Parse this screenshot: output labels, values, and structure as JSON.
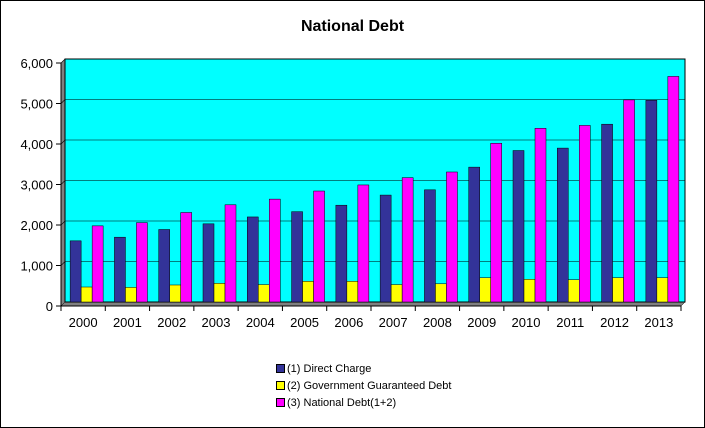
{
  "chart_data": {
    "type": "bar",
    "title": "National Debt",
    "xlabel": "",
    "ylabel": "",
    "categories": [
      "2000",
      "2001",
      "2002",
      "2003",
      "2004",
      "2005",
      "2006",
      "2007",
      "2008",
      "2009",
      "2010",
      "2011",
      "2012",
      "2013"
    ],
    "series": [
      {
        "name": "(1) Direct Charge",
        "color": "#333399",
        "values": [
          1510,
          1600,
          1790,
          1930,
          2100,
          2230,
          2390,
          2640,
          2770,
          3330,
          3740,
          3800,
          4390,
          4980
        ]
      },
      {
        "name": "(2) Government Guaranteed Debt",
        "color": "#ffff00",
        "values": [
          370,
          360,
          420,
          460,
          430,
          510,
          510,
          430,
          450,
          600,
          560,
          550,
          600,
          600
        ]
      },
      {
        "name": "(3) National Debt(1+2)",
        "color": "#ff00ff",
        "values": [
          1880,
          1960,
          2210,
          2400,
          2540,
          2740,
          2890,
          3070,
          3210,
          3920,
          4290,
          4360,
          4990,
          5570
        ]
      }
    ],
    "ylim": [
      0,
      6000
    ],
    "yticks": [
      "0",
      "1,000",
      "2,000",
      "3,000",
      "4,000",
      "5,000",
      "6,000"
    ],
    "ytick_values": [
      0,
      1000,
      2000,
      3000,
      4000,
      5000,
      6000
    ],
    "grid": true,
    "plot_background": "#00ffff",
    "legend_position": "bottom-center"
  }
}
